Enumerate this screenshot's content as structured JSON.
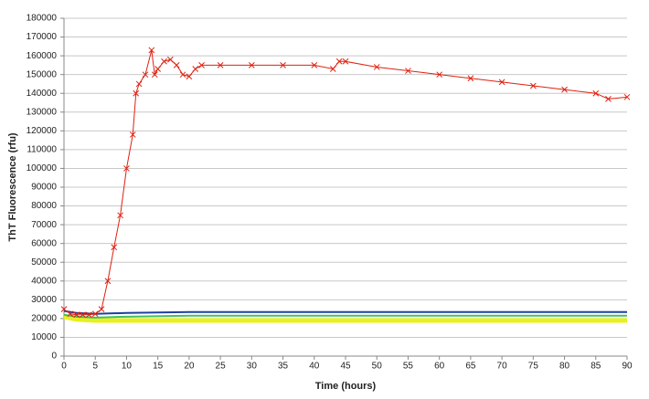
{
  "chart_data": {
    "type": "line",
    "x_label": "Time (hours)",
    "y_label": "ThT Fluorescence (rfu)",
    "xlim": [
      0,
      90
    ],
    "xticks": [
      0,
      5,
      10,
      15,
      20,
      25,
      30,
      35,
      40,
      45,
      50,
      55,
      60,
      65,
      70,
      75,
      80,
      85,
      90
    ],
    "ylim": [
      0,
      180000
    ],
    "yticks": [
      0,
      10000,
      20000,
      30000,
      40000,
      50000,
      60000,
      70000,
      80000,
      90000,
      100000,
      110000,
      120000,
      130000,
      140000,
      150000,
      160000,
      170000,
      180000
    ],
    "grid": true,
    "series": [
      {
        "color": "#e8f020",
        "width": 5,
        "x": [
          0,
          2,
          5,
          10,
          20,
          30,
          40,
          50,
          60,
          70,
          80,
          90
        ],
        "values": [
          21000,
          19500,
          19000,
          19000,
          19000,
          19000,
          19000,
          19000,
          19000,
          19000,
          19000,
          19000
        ]
      },
      {
        "color": "#40c060",
        "width": 2,
        "x": [
          0,
          2,
          5,
          10,
          20,
          30,
          40,
          50,
          60,
          70,
          80,
          90
        ],
        "values": [
          22000,
          21000,
          20500,
          21000,
          21500,
          21500,
          21500,
          21500,
          21500,
          21500,
          21500,
          21500
        ]
      },
      {
        "color": "#1f3fa0",
        "width": 2,
        "x": [
          0,
          2,
          5,
          10,
          20,
          30,
          40,
          50,
          60,
          70,
          80,
          90
        ],
        "values": [
          24000,
          23000,
          22500,
          23000,
          23500,
          23500,
          23500,
          23500,
          23500,
          23500,
          23500,
          23500
        ]
      },
      {
        "color": "#e02010",
        "width": 1,
        "marker": "x",
        "x": [
          0,
          1,
          2,
          3,
          4,
          5,
          6,
          7,
          8,
          9,
          10,
          11,
          11.5,
          12,
          13,
          14,
          14.5,
          15,
          16,
          17,
          18,
          19,
          20,
          21,
          22,
          25,
          30,
          35,
          40,
          43,
          44,
          45,
          50,
          55,
          60,
          65,
          70,
          75,
          80,
          85,
          87,
          90
        ],
        "values": [
          25000,
          22500,
          22000,
          22000,
          22000,
          22500,
          25000,
          40000,
          58000,
          75000,
          100000,
          118000,
          140000,
          145000,
          150000,
          163000,
          150000,
          153000,
          157000,
          158000,
          155000,
          150000,
          149000,
          153000,
          155000,
          155000,
          155000,
          155000,
          155000,
          153000,
          157000,
          157000,
          154000,
          152000,
          150000,
          148000,
          146000,
          144000,
          142000,
          140000,
          137000,
          138000
        ]
      }
    ]
  }
}
